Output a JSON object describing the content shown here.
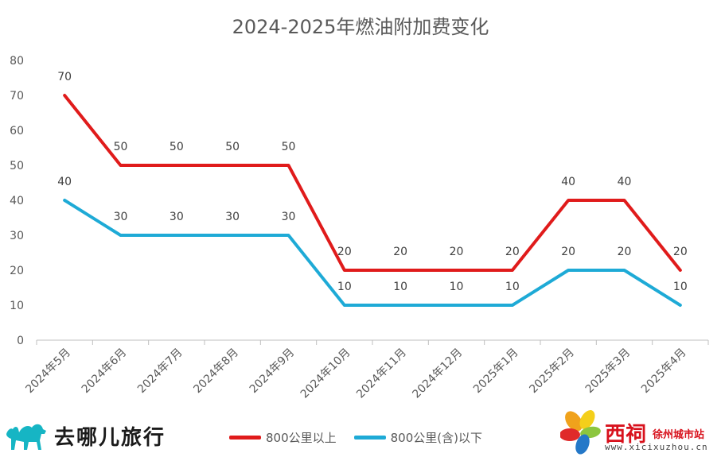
{
  "chart_data": {
    "type": "line",
    "title": "2024-2025年燃油附加费变化",
    "categories": [
      "2024年5月",
      "2024年6月",
      "2024年7月",
      "2024年8月",
      "2024年9月",
      "2024年10月",
      "2024年11月",
      "2024年12月",
      "2025年1月",
      "2025年2月",
      "2025年3月",
      "2025年4月"
    ],
    "series": [
      {
        "name": "800公里以上",
        "color": "#e01b1b",
        "values": [
          70,
          50,
          50,
          50,
          50,
          20,
          20,
          20,
          20,
          40,
          40,
          20
        ]
      },
      {
        "name": "800公里(含)以下",
        "color": "#1eaad6",
        "values": [
          40,
          30,
          30,
          30,
          30,
          10,
          10,
          10,
          10,
          20,
          20,
          10
        ]
      }
    ],
    "ylim": [
      0,
      80
    ],
    "yticks": [
      0,
      10,
      20,
      30,
      40,
      50,
      60,
      70,
      80
    ],
    "grid": false,
    "data_labels": true,
    "legend_position": "bottom"
  },
  "logos": {
    "qunar": {
      "text": "去哪儿旅行",
      "icon": "camel-icon"
    },
    "xici": {
      "name": "西祠",
      "subtitle": "徐州城市站",
      "url": "www.xicixuzhou.cn",
      "icon": "pinwheel-icon"
    }
  }
}
